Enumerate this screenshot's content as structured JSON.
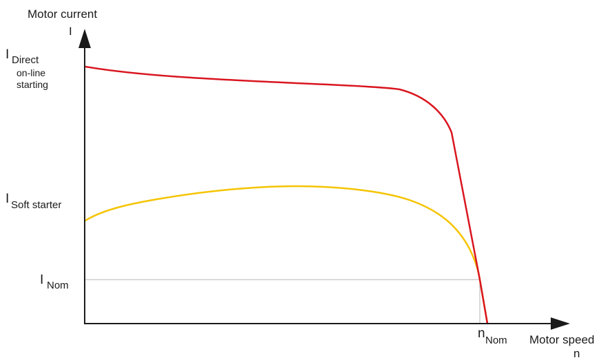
{
  "axes": {
    "y_title": "Motor current",
    "y_symbol": "I",
    "x_title": "Motor speed",
    "x_symbol": "n"
  },
  "labels": {
    "i_direct_main": "I",
    "i_direct_sub": "Direct",
    "i_direct_line2": "on-line",
    "i_direct_line3": "starting",
    "i_soft_main": "I",
    "i_soft_sub": "Soft starter",
    "i_nom_main": "I",
    "i_nom_sub": "Nom",
    "n_nom_main": "n",
    "n_nom_sub": "Nom"
  },
  "colors": {
    "axis": "#1a1a1a",
    "direct_curve": "#d9151f",
    "soft_curve": "#f5c400",
    "reference_line": "#b3b3b3"
  }
}
